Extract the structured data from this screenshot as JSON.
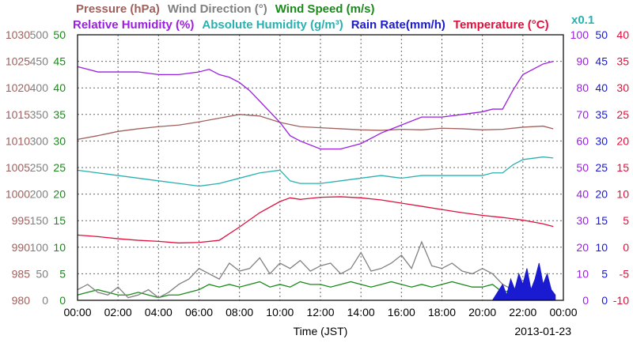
{
  "chart_data": {
    "type": "line",
    "legend_row1": [
      {
        "text": "Pressure (hPa)",
        "color": "#a0605c"
      },
      {
        "text": "Wind Direction (°)",
        "color": "#808080"
      },
      {
        "text": "Wind Speed (m/s)",
        "color": "#1a8a1a"
      }
    ],
    "legend_row2": [
      {
        "text": "Relative Humidity (%)",
        "color": "#9b1fe0"
      },
      {
        "text": "Absolute Humidity (g/m³)",
        "color": "#2ab0b0"
      },
      {
        "text": "Rain Rate(mm/h)",
        "color": "#1a1ad0"
      },
      {
        "text": "Temperature (°C)",
        "color": "#e0103c"
      }
    ],
    "x_multiplier": "x0.1",
    "xlabel": "Time (JST)",
    "date": "2013-01-23",
    "x_ticks": [
      "00:00",
      "02:00",
      "04:00",
      "06:00",
      "08:00",
      "10:00",
      "12:00",
      "14:00",
      "16:00",
      "18:00",
      "20:00",
      "22:00",
      "00:00"
    ],
    "axes": {
      "pressure": {
        "color": "#a0605c",
        "ticks": [
          "1030",
          "1025",
          "1020",
          "1015",
          "1010",
          "1005",
          "1000",
          "995",
          "990",
          "985",
          "980"
        ],
        "ylim": [
          980,
          1030
        ]
      },
      "wind_direction": {
        "color": "#808080",
        "ticks": [
          "500",
          "450",
          "400",
          "350",
          "300",
          "250",
          "200",
          "150",
          "100",
          "50",
          "0"
        ],
        "ylim": [
          0,
          500
        ]
      },
      "wind_speed": {
        "color": "#1a8a1a",
        "ticks": [
          "50",
          "45",
          "40",
          "35",
          "30",
          "25",
          "20",
          "15",
          "10",
          "5",
          "0"
        ],
        "ylim": [
          0,
          50
        ]
      },
      "relative_humidity": {
        "color": "#9b1fe0",
        "ticks": [
          "100",
          "90",
          "80",
          "70",
          "60",
          "50",
          "40",
          "30",
          "20",
          "10",
          "0"
        ],
        "ylim": [
          0,
          100
        ]
      },
      "rain_rate": {
        "color": "#1a1ad0",
        "ticks": [
          "50",
          "45",
          "40",
          "35",
          "30",
          "25",
          "20",
          "15",
          "10",
          "5",
          "0"
        ],
        "ylim": [
          0,
          50
        ]
      },
      "temperature": {
        "color": "#e0103c",
        "ticks": [
          "40",
          "35",
          "30",
          "25",
          "20",
          "15",
          "10",
          "5",
          "0",
          "-5",
          "-10"
        ],
        "ylim": [
          -10,
          40
        ]
      }
    },
    "grid": true,
    "series": [
      {
        "name": "Pressure (hPa)",
        "color": "#a0605c",
        "axis": "pressure",
        "x": [
          0,
          1,
          2,
          3,
          4,
          5,
          6,
          7,
          8,
          9,
          10,
          11,
          12,
          13,
          14,
          15,
          16,
          17,
          18,
          19,
          20,
          21,
          22,
          23,
          23.5
        ],
        "y": [
          1010.3,
          1011.0,
          1011.8,
          1012.3,
          1012.7,
          1013.0,
          1013.6,
          1014.3,
          1015.0,
          1014.7,
          1013.5,
          1012.7,
          1012.5,
          1012.3,
          1012.1,
          1012.0,
          1012.2,
          1012.1,
          1012.4,
          1012.3,
          1012.1,
          1012.2,
          1012.6,
          1012.8,
          1012.3
        ]
      },
      {
        "name": "Relative Humidity (%)",
        "color": "#9b1fe0",
        "axis": "relative_humidity",
        "x": [
          0,
          0.5,
          1,
          2,
          3,
          4,
          5,
          6,
          6.5,
          7,
          7.5,
          8,
          8.5,
          9,
          9.5,
          10,
          10.5,
          11,
          12,
          13,
          14,
          15,
          16,
          17,
          18,
          19,
          20,
          20.5,
          21,
          21.5,
          22,
          23,
          23.5
        ],
        "y": [
          88,
          87,
          86,
          86,
          86,
          85,
          85,
          86,
          87,
          85,
          84,
          82,
          79,
          75,
          71,
          67,
          62,
          60,
          57,
          57,
          59,
          63,
          66,
          69,
          69,
          70,
          71,
          72,
          72,
          79,
          85,
          89,
          90
        ]
      },
      {
        "name": "Absolute Humidity (g/m³)",
        "color": "#2ab0b0",
        "axis": "wind_speed",
        "x": [
          0,
          1,
          2,
          3,
          4,
          5,
          6,
          7,
          8,
          9,
          10,
          10.5,
          11,
          12,
          13,
          14,
          15,
          16,
          17,
          18,
          19,
          20,
          20.5,
          21,
          21.5,
          22,
          23,
          23.5
        ],
        "y": [
          24.5,
          24,
          23.5,
          23,
          22.5,
          22,
          21.5,
          22,
          23,
          24,
          24.5,
          22.5,
          22,
          22,
          22.5,
          23,
          23.5,
          23,
          23.5,
          23.5,
          23.5,
          23.5,
          24,
          24,
          25.5,
          26.5,
          27,
          26.8
        ]
      },
      {
        "name": "Temperature (°C)",
        "color": "#e0103c",
        "axis": "temperature",
        "x": [
          0,
          1,
          2,
          3,
          4,
          5,
          6,
          7,
          8,
          9,
          10,
          10.5,
          11,
          12,
          13,
          14,
          15,
          16,
          17,
          18,
          19,
          20,
          21,
          22,
          23,
          23.5
        ],
        "y": [
          2.3,
          2.0,
          1.6,
          1.3,
          1.1,
          0.8,
          0.9,
          1.3,
          3.8,
          6.5,
          8.6,
          9.3,
          9.0,
          9.4,
          9.5,
          9.3,
          8.9,
          8.3,
          7.7,
          7.1,
          6.5,
          6.0,
          5.6,
          5.1,
          4.4,
          3.9
        ]
      },
      {
        "name": "Wind Speed (m/s)",
        "color": "#1a8a1a",
        "axis": "wind_speed",
        "x": [
          0,
          0.5,
          1,
          1.5,
          2,
          2.5,
          3,
          3.5,
          4,
          4.5,
          5,
          5.5,
          6,
          6.5,
          7,
          7.5,
          8,
          8.5,
          9,
          9.5,
          10,
          10.5,
          11,
          11.5,
          12,
          12.5,
          13,
          13.5,
          14,
          14.5,
          15,
          15.5,
          16,
          16.5,
          17,
          17.5,
          18,
          18.5,
          19,
          19.5,
          20,
          20.5,
          21,
          21.5,
          22,
          22.5,
          23,
          23.5
        ],
        "y": [
          1,
          1.5,
          2,
          1.5,
          1,
          1,
          1.5,
          1,
          0.5,
          1,
          1,
          1.5,
          2,
          3,
          2.5,
          3,
          2.5,
          3,
          3.5,
          2.5,
          3,
          2.5,
          3.5,
          3,
          3,
          2.5,
          3,
          3.5,
          3,
          2.5,
          3,
          3.5,
          3,
          2.5,
          3,
          2.5,
          3,
          3.5,
          3,
          2.5,
          2.5,
          3,
          1.5,
          2,
          1.5,
          2,
          1.5,
          1
        ]
      },
      {
        "name": "Wind Direction (°)",
        "color": "#808080",
        "axis": "wind_direction",
        "x": [
          0,
          0.5,
          1,
          1.5,
          2,
          2.5,
          3,
          3.5,
          4,
          4.5,
          5,
          5.5,
          6,
          6.5,
          7,
          7.5,
          8,
          8.5,
          9,
          9.5,
          10,
          10.5,
          11,
          11.5,
          12,
          12.5,
          13,
          13.5,
          14,
          14.5,
          15,
          15.5,
          16,
          16.5,
          17,
          17.5,
          18,
          18.5,
          19,
          19.5,
          20,
          20.5,
          21,
          21.5,
          22,
          22.5,
          23,
          23.5
        ],
        "y": [
          20,
          30,
          15,
          10,
          25,
          5,
          10,
          20,
          5,
          15,
          30,
          40,
          60,
          50,
          40,
          70,
          55,
          60,
          80,
          50,
          70,
          60,
          75,
          55,
          65,
          70,
          50,
          60,
          90,
          55,
          60,
          70,
          85,
          60,
          110,
          65,
          60,
          70,
          55,
          50,
          60,
          50,
          30,
          20,
          25,
          15,
          20,
          10
        ]
      },
      {
        "name": "Rain Rate(mm/h)",
        "color": "#1a1ad0",
        "axis": "rain_rate",
        "x": [
          0,
          20.5,
          21,
          21.2,
          21.4,
          21.6,
          21.8,
          22,
          22.2,
          22.4,
          22.6,
          22.8,
          23,
          23.2,
          23.4,
          23.6
        ],
        "y": [
          0,
          0,
          3,
          1,
          4,
          2,
          5,
          3,
          6,
          2,
          4,
          7,
          3,
          5,
          2,
          1
        ]
      }
    ]
  }
}
